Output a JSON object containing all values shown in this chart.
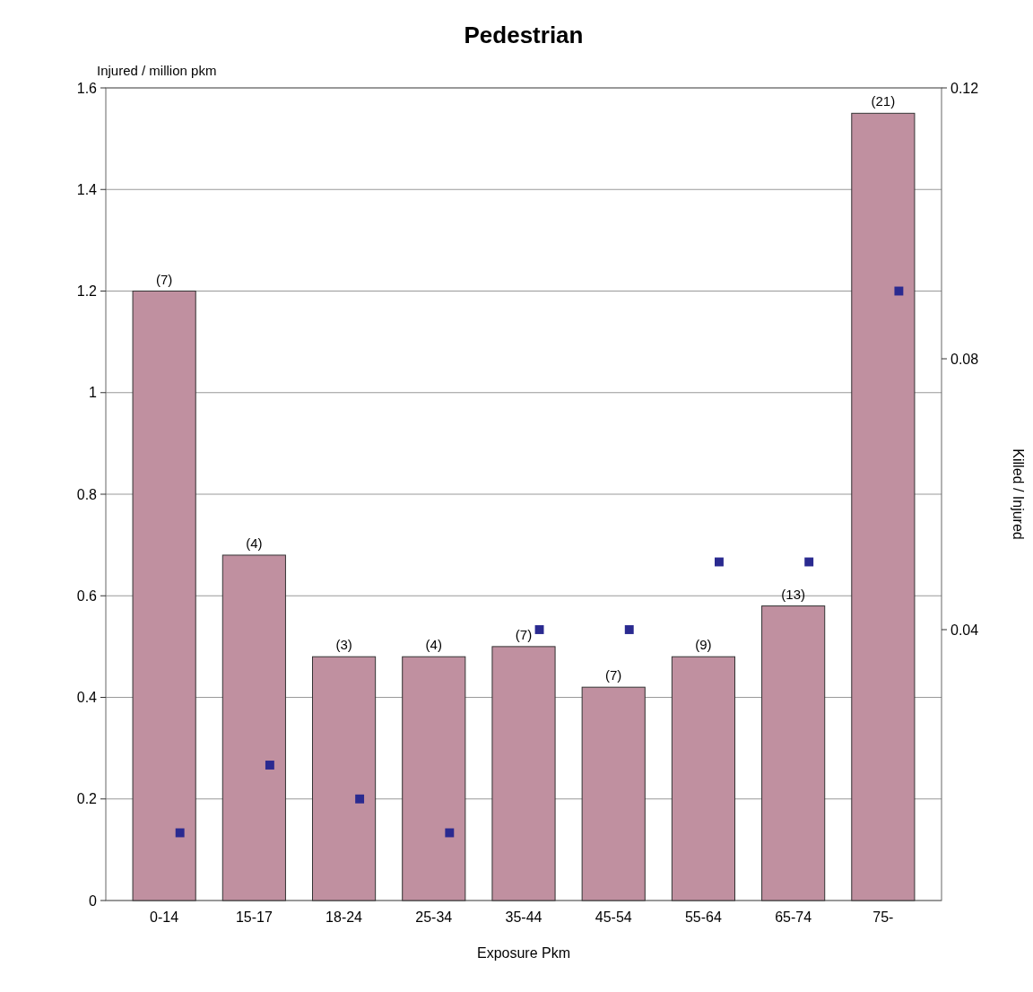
{
  "chart_data": {
    "type": "bar",
    "title": "Pedestrian",
    "ylabel": "Injured / million pkm",
    "xlabel": "Exposure Pkm",
    "y2label": "Killed / Injured",
    "categories": [
      "0-14",
      "15-17",
      "18-24",
      "25-34",
      "35-44",
      "45-54",
      "55-64",
      "65-74",
      "75-"
    ],
    "series": [
      {
        "color": "#c090a0",
        "values": [
          1.2,
          0.68,
          0.48,
          0.48,
          0.5,
          0.42,
          0.48,
          0.58,
          1.55
        ]
      },
      {
        "type": "scatter",
        "axis": "y2",
        "color": "#2a2a90",
        "values": [
          0.01,
          0.02,
          0.015,
          0.01,
          0.04,
          0.04,
          0.05,
          0.05,
          0.09
        ]
      }
    ],
    "annotations": [
      {
        "text": "(7)",
        "x": "0-14",
        "y": 1.2
      },
      {
        "text": "(4)",
        "x": "15-17",
        "y": 0.68
      },
      {
        "text": "(3)",
        "x": "18-24",
        "y": 0.48
      },
      {
        "text": "(4)",
        "x": "25-34",
        "y": 0.48
      },
      {
        "text": "(7)",
        "x": "35-44",
        "y": 0.5
      },
      {
        "text": "(7)",
        "x": "45-54",
        "y": 0.42
      },
      {
        "text": "(9)",
        "x": "55-64",
        "y": 0.48
      },
      {
        "text": "(13)",
        "x": "65-74",
        "y": 0.58
      },
      {
        "text": "(21)",
        "x": "75-",
        "y": 1.55
      }
    ],
    "ylim": [
      0,
      1.6
    ],
    "yticks": [
      0,
      0.2,
      0.4,
      0.6,
      0.8,
      1,
      1.2,
      1.4,
      1.6
    ],
    "y2lim": [
      0,
      0.12
    ],
    "y2ticks": [
      0.04,
      0.08,
      0.12
    ],
    "grid": "y",
    "marker": "square"
  }
}
